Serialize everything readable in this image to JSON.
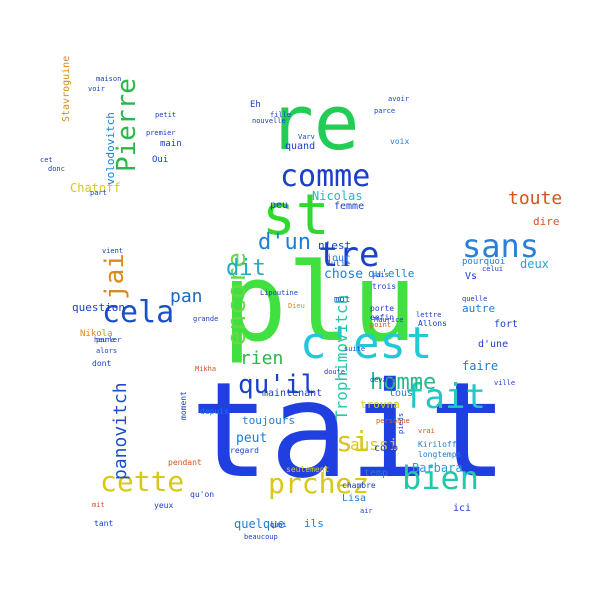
{
  "words": [
    {
      "text": "tait",
      "color": "#1f3fe0"
    },
    {
      "text": "plu",
      "color": "#3fe03f"
    },
    {
      "text": "re",
      "color": "#22cc55"
    },
    {
      "text": "st",
      "color": "#30d830"
    },
    {
      "text": "c'est",
      "color": "#22c8d8"
    },
    {
      "text": "comme",
      "color": "#1a3fc8"
    },
    {
      "text": "sans",
      "color": "#2a7fd8"
    },
    {
      "text": "fait",
      "color": "#22c8c8"
    },
    {
      "text": "bien",
      "color": "#22c8aa"
    },
    {
      "text": "prchez",
      "color": "#d8c81a"
    },
    {
      "text": "cette",
      "color": "#d8c81a"
    },
    {
      "text": "qu'il",
      "color": "#1a3fc8"
    },
    {
      "text": "cela",
      "color": "#1a4fc8"
    },
    {
      "text": "Pierre",
      "color": "#2ab84a"
    },
    {
      "text": "tre",
      "color": "#1a3fc8"
    },
    {
      "text": "d'un",
      "color": "#1a7fd8"
    },
    {
      "text": "jai",
      "color": "#d88a1a"
    },
    {
      "text": "encore",
      "color": "#6ad84a"
    },
    {
      "text": "si",
      "color": "#d8c81a"
    },
    {
      "text": "dit",
      "color": "#22a8c8"
    },
    {
      "text": "pan",
      "color": "#1a6ac8"
    },
    {
      "text": "rien",
      "color": "#2ab84a"
    },
    {
      "text": "homme",
      "color": "#2ab88a"
    },
    {
      "text": "panovitch",
      "color": "#1a4fc8"
    },
    {
      "text": "toute",
      "color": "#d8521a"
    },
    {
      "text": "deux",
      "color": "#22a8c8"
    },
    {
      "text": "Trophimovitch",
      "color": "#22c8a8"
    },
    {
      "text": "aussi",
      "color": "#d8c81a"
    },
    {
      "text": "peut",
      "color": "#1a7fd8"
    },
    {
      "text": "chose",
      "color": "#1a7fd8"
    },
    {
      "text": "Nicolas",
      "color": "#22b8c8"
    },
    {
      "text": "faire",
      "color": "#1a7fd8"
    },
    {
      "text": "quelque",
      "color": "#1a7fd8"
    },
    {
      "text": "ils",
      "color": "#1a7fd8"
    },
    {
      "text": "Barbara",
      "color": "#2a9fd8"
    },
    {
      "text": "Chatoff",
      "color": "#d8c81a"
    },
    {
      "text": "question",
      "color": "#1a3fc8"
    },
    {
      "text": "toujours",
      "color": "#1a7fd8"
    },
    {
      "text": "qu'elle",
      "color": "#1a7fd8"
    },
    {
      "text": "maintenant",
      "color": "#1a3fc8"
    },
    {
      "text": "autre",
      "color": "#1a7fd8"
    },
    {
      "text": "volodovitch",
      "color": "#1a7fd8"
    },
    {
      "text": "Stavroguine",
      "color": "#d88a1a"
    },
    {
      "text": "n'est",
      "color": "#1a3fc8"
    },
    {
      "text": "dire",
      "color": "#d8521a"
    },
    {
      "text": "d'une",
      "color": "#1a3fc8"
    },
    {
      "text": "fort",
      "color": "#1a3fc8"
    },
    {
      "text": "jour",
      "color": "#1a7fd8"
    },
    {
      "text": "temp",
      "color": "#1a7fd8"
    },
    {
      "text": "trovna",
      "color": "#d8c81a"
    },
    {
      "text": "Nikola",
      "color": "#d88a1a"
    },
    {
      "text": "main",
      "color": "#1a3fc8"
    },
    {
      "text": "quand",
      "color": "#1a3fc8"
    },
    {
      "text": "femme",
      "color": "#1a3fc8"
    },
    {
      "text": "Vs",
      "color": "#1a3fc8"
    },
    {
      "text": "pourquoi",
      "color": "#1a7fd8"
    },
    {
      "text": "ici",
      "color": "#1a3fc8"
    },
    {
      "text": "coup",
      "color": "#1a3fc8"
    },
    {
      "text": "Lisa",
      "color": "#1a7fd8"
    },
    {
      "text": "peu",
      "color": "#1a3fc8"
    },
    {
      "text": "tous",
      "color": "#1a7fd8"
    },
    {
      "text": "voix",
      "color": "#1a7fd8"
    },
    {
      "text": "Eh",
      "color": "#1a3fc8"
    },
    {
      "text": "Oui",
      "color": "#1a3fc8"
    },
    {
      "text": "mot",
      "color": "#1a3fc8"
    },
    {
      "text": "trois",
      "color": "#1a3fc8"
    },
    {
      "text": "enfin",
      "color": "#1a3fc8"
    },
    {
      "text": "porte",
      "color": "#1a3fc8"
    },
    {
      "text": "moment",
      "color": "#1a3fc8"
    },
    {
      "text": "depuis",
      "color": "#1a7fd8"
    },
    {
      "text": "regard",
      "color": "#1a3fc8"
    },
    {
      "text": "seulement",
      "color": "#d8c81a"
    },
    {
      "text": "Allons",
      "color": "#1a3fc8"
    },
    {
      "text": "Kiriloff",
      "color": "#1a7fd8"
    },
    {
      "text": "longtemps",
      "color": "#1a7fd8"
    },
    {
      "text": "dont",
      "color": "#1a3fc8"
    },
    {
      "text": "tant",
      "color": "#1a3fc8"
    },
    {
      "text": "yeux",
      "color": "#1a3fc8"
    },
    {
      "text": "qu'on",
      "color": "#1a3fc8"
    },
    {
      "text": "pendant",
      "color": "#d8521a"
    },
    {
      "text": "Julie",
      "color": "#1a3fc8"
    },
    {
      "text": "chambre",
      "color": "#1a3fc8"
    },
    {
      "text": "petit",
      "color": "#1a3fc8"
    },
    {
      "text": "premier",
      "color": "#1a3fc8"
    },
    {
      "text": "voir",
      "color": "#1a3fc8"
    },
    {
      "text": "maison",
      "color": "#1a3fc8"
    },
    {
      "text": "part",
      "color": "#1a3fc8"
    },
    {
      "text": "parler",
      "color": "#1a3fc8"
    },
    {
      "text": "grande",
      "color": "#1a3fc8"
    },
    {
      "text": "nouvelle",
      "color": "#1a3fc8"
    },
    {
      "text": "Dieu",
      "color": "#d88a1a"
    },
    {
      "text": "celui",
      "color": "#1a3fc8"
    },
    {
      "text": "quelle",
      "color": "#1a3fc8"
    },
    {
      "text": "ville",
      "color": "#1a3fc8"
    },
    {
      "text": "alors",
      "color": "#1a3fc8"
    },
    {
      "text": "heure",
      "color": "#1a3fc8"
    },
    {
      "text": "mit",
      "color": "#d8521a"
    },
    {
      "text": "suite",
      "color": "#1a3fc8"
    },
    {
      "text": "devant",
      "color": "#1a3fc8"
    },
    {
      "text": "point",
      "color": "#d8521a"
    },
    {
      "text": "vrai",
      "color": "#d8521a"
    },
    {
      "text": "doute",
      "color": "#1a3fc8"
    },
    {
      "text": "Maurice",
      "color": "#1a3fc8"
    },
    {
      "text": "beaucoup",
      "color": "#1a3fc8"
    },
    {
      "text": "fille",
      "color": "#1a3fc8"
    },
    {
      "text": "Varv",
      "color": "#1a3fc8"
    },
    {
      "text": "Lipoutine",
      "color": "#1a3fc8"
    },
    {
      "text": "donc",
      "color": "#1a3fc8"
    },
    {
      "text": "cet",
      "color": "#1a3fc8"
    },
    {
      "text": "Mikha",
      "color": "#d8521a"
    },
    {
      "text": "pieds",
      "color": "#1a3fc8"
    },
    {
      "text": "lettre",
      "color": "#1a3fc8"
    },
    {
      "text": "sais",
      "color": "#1a3fc8"
    },
    {
      "text": "parce",
      "color": "#1a3fc8"
    },
    {
      "text": "avoir",
      "color": "#1a3fc8"
    },
    {
      "text": "quoi",
      "color": "#1a3fc8"
    },
    {
      "text": "air",
      "color": "#1a3fc8"
    },
    {
      "text": "personne",
      "color": "#d8521a"
    },
    {
      "text": "vient",
      "color": "#1a3fc8"
    },
    {
      "text": "the",
      "color": "#1a3fc8"
    }
  ]
}
